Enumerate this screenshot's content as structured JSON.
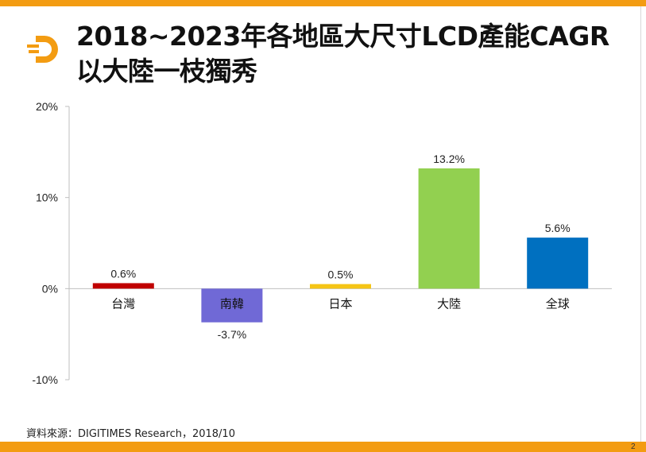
{
  "title": {
    "line1": "2018~2023年各地區大尺寸LCD產能CAGR",
    "line2": "以大陸一枝獨秀"
  },
  "logo": {
    "icon": "digitimes-d-logo-icon",
    "color": "#f39c12"
  },
  "source": "資料來源：DIGITIMES Research，2018/10",
  "page_number": "2",
  "colors": {
    "accent": "#f39c12"
  },
  "chart_data": {
    "type": "bar",
    "title": "",
    "xlabel": "",
    "ylabel": "",
    "ylim": [
      -10,
      20
    ],
    "yticks": [
      20,
      10,
      0,
      -10
    ],
    "ytick_labels": [
      "20%",
      "10%",
      "0%",
      "-10%"
    ],
    "grid": false,
    "legend": "none",
    "categories": [
      "台灣",
      "南韓",
      "日本",
      "大陸",
      "全球"
    ],
    "values": [
      0.6,
      -3.7,
      0.5,
      13.2,
      5.6
    ],
    "data_labels": [
      "0.6%",
      "-3.7%",
      "0.5%",
      "13.2%",
      "5.6%"
    ],
    "bar_colors": [
      "#c00000",
      "#7069d6",
      "#f5c516",
      "#92d050",
      "#0070c0"
    ]
  }
}
